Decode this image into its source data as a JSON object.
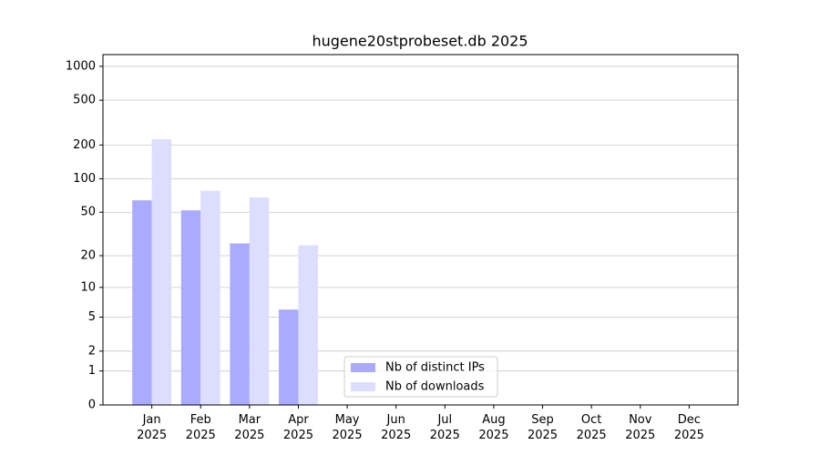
{
  "chart_data": {
    "type": "bar",
    "title": "hugene20stprobeset.db 2025",
    "categories": [
      "Jan 2025",
      "Feb 2025",
      "Mar 2025",
      "Apr 2025",
      "May 2025",
      "Jun 2025",
      "Jul 2025",
      "Aug 2025",
      "Sep 2025",
      "Oct 2025",
      "Nov 2025",
      "Dec 2025"
    ],
    "series": [
      {
        "name": "Nb of distinct IPs",
        "color": "#aaaaff",
        "values": [
          64,
          52,
          26,
          6,
          null,
          null,
          null,
          null,
          null,
          null,
          null,
          null
        ]
      },
      {
        "name": "Nb of downloads",
        "color": "#ddddff",
        "values": [
          225,
          78,
          68,
          25,
          null,
          null,
          null,
          null,
          null,
          null,
          null,
          null
        ]
      }
    ],
    "y_scale": "symlog",
    "ylim": [
      0,
      1270
    ],
    "yticks": [
      0,
      1,
      2,
      5,
      10,
      20,
      50,
      100,
      200,
      500,
      1000
    ],
    "grid": true,
    "legend_position": "lower center"
  }
}
